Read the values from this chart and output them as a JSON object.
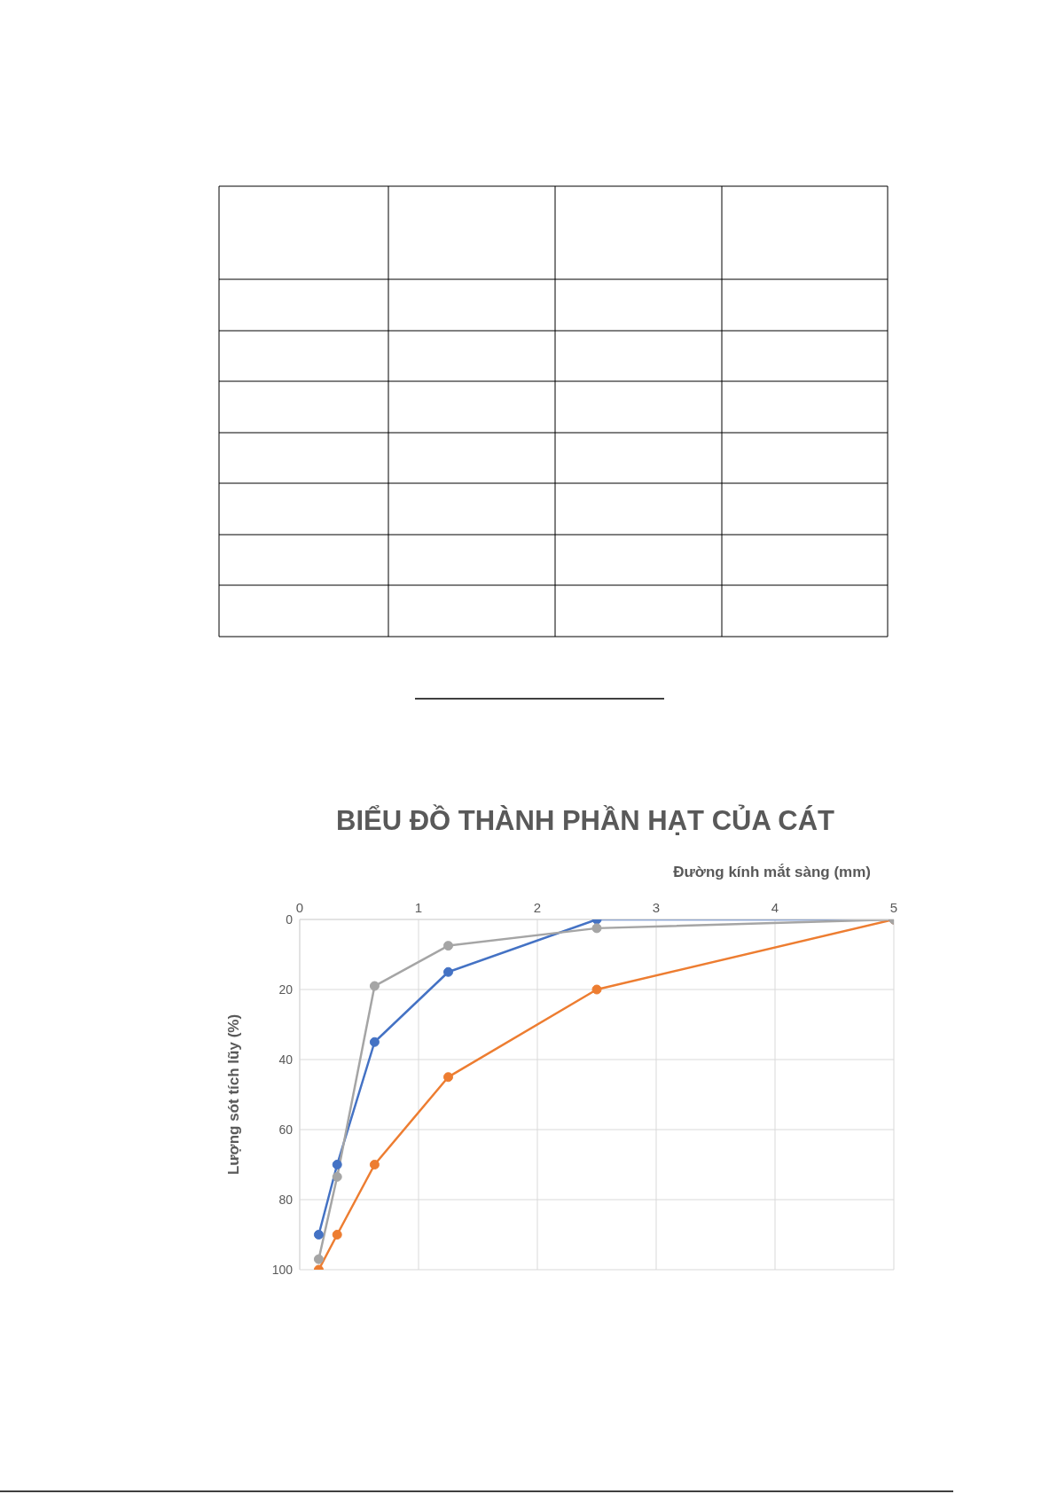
{
  "chart_data": {
    "type": "line",
    "title": "BIỂU ĐỒ THÀNH PHẦN HẠT CỦA CÁT",
    "xlabel": "Đường kính mắt sàng (mm)",
    "ylabel": "Lượng sót tích lũy (%)",
    "x": [
      0.16,
      0.315,
      0.63,
      1.25,
      2.5,
      5
    ],
    "series": [
      {
        "color": "#4472c4",
        "values": [
          90,
          70,
          35,
          15,
          0,
          0
        ]
      },
      {
        "color": "#ed7d31",
        "values": [
          100,
          90,
          70,
          45,
          20,
          0
        ]
      },
      {
        "color": "#a5a5a5",
        "values": [
          97,
          73.5,
          19,
          7.5,
          2.5,
          0
        ]
      }
    ],
    "xlim": [
      0,
      5
    ],
    "xticks": [
      0,
      1,
      2,
      3,
      4,
      5
    ],
    "ylim": [
      100,
      0
    ],
    "yticks": [
      0,
      20,
      40,
      60,
      80,
      100
    ],
    "grid": true,
    "marker": "circle",
    "line_style": "solid"
  }
}
